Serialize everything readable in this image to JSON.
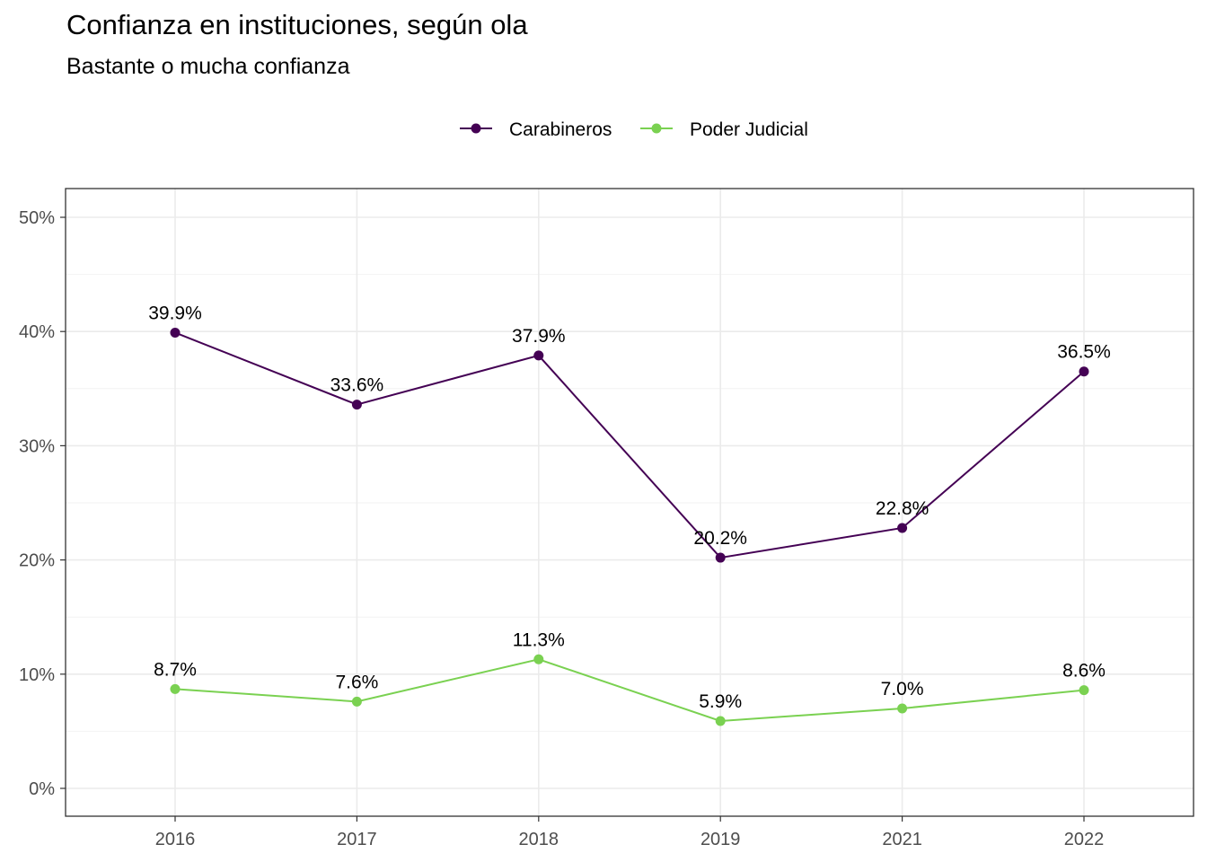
{
  "title": "Confianza en instituciones, según ola",
  "subtitle": "Bastante o mucha confianza",
  "chart_data": {
    "type": "line",
    "title": "Confianza en instituciones, según ola",
    "subtitle": "Bastante o mucha confianza",
    "xlabel": "",
    "ylabel": "",
    "categories": [
      "2016",
      "2017",
      "2018",
      "2019",
      "2021",
      "2022"
    ],
    "ylim": [
      0,
      0.5
    ],
    "y_ticks": [
      {
        "value": 0,
        "label": "0%"
      },
      {
        "value": 0.1,
        "label": "10%"
      },
      {
        "value": 0.2,
        "label": "20%"
      },
      {
        "value": 0.3,
        "label": "30%"
      },
      {
        "value": 0.4,
        "label": "40%"
      },
      {
        "value": 0.5,
        "label": "50%"
      }
    ],
    "grid": true,
    "legend_position": "top",
    "series": [
      {
        "name": "Carabineros",
        "color": "#440154",
        "values": [
          0.399,
          0.336,
          0.379,
          0.202,
          0.228,
          0.365
        ],
        "labels": [
          "39.9%",
          "33.6%",
          "37.9%",
          "20.2%",
          "22.8%",
          "36.5%"
        ]
      },
      {
        "name": "Poder Judicial",
        "color": "#7AD151",
        "values": [
          0.087,
          0.076,
          0.113,
          0.059,
          0.07,
          0.086
        ],
        "labels": [
          "8.7%",
          "7.6%",
          "11.3%",
          "5.9%",
          "7.0%",
          "8.6%"
        ]
      }
    ]
  }
}
